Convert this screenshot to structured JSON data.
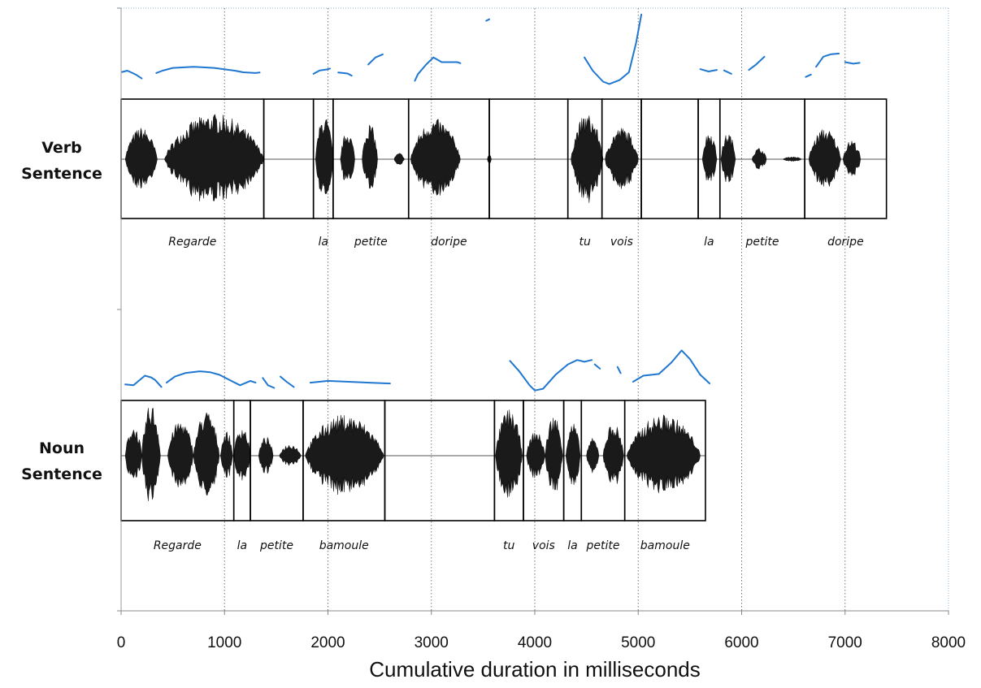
{
  "chart_data": {
    "type": "area",
    "xlabel": "Cumulative duration in milliseconds",
    "xlim": [
      0,
      8000
    ],
    "xticks": [
      0,
      1000,
      2000,
      3000,
      4000,
      5000,
      6000,
      7000,
      8000
    ],
    "grid": "vertical dotted",
    "pitch_color": "#1f77d0",
    "waveform_color": "#1a1a1a",
    "rows": [
      {
        "label_line1": "Verb",
        "label_line2": "Sentence",
        "segments": [
          {
            "word": "Regarde",
            "start": 0,
            "end": 1380
          },
          {
            "word": "",
            "start": 1380,
            "end": 1860
          },
          {
            "word": "la",
            "start": 1860,
            "end": 2050
          },
          {
            "word": "petite",
            "start": 2050,
            "end": 2780
          },
          {
            "word": "doripe",
            "start": 2780,
            "end": 3560
          },
          {
            "word": "",
            "start": 3560,
            "end": 4320
          },
          {
            "word": "tu",
            "start": 4320,
            "end": 4650
          },
          {
            "word": "vois",
            "start": 4650,
            "end": 5030
          },
          {
            "word": "",
            "start": 5030,
            "end": 5580
          },
          {
            "word": "la",
            "start": 5580,
            "end": 5790
          },
          {
            "word": "petite",
            "start": 5790,
            "end": 6610
          },
          {
            "word": "doripe",
            "start": 6610,
            "end": 7400
          }
        ],
        "bursts": [
          {
            "start": 40,
            "end": 350,
            "amp": 0.62
          },
          {
            "start": 420,
            "end": 1380,
            "amp": 0.88
          },
          {
            "start": 1880,
            "end": 2050,
            "amp": 0.85
          },
          {
            "start": 2120,
            "end": 2260,
            "amp": 0.55
          },
          {
            "start": 2330,
            "end": 2480,
            "amp": 0.7
          },
          {
            "start": 2640,
            "end": 2740,
            "amp": 0.12
          },
          {
            "start": 2800,
            "end": 3280,
            "amp": 0.78
          },
          {
            "start": 3540,
            "end": 3580,
            "amp": 0.1
          },
          {
            "start": 4350,
            "end": 4660,
            "amp": 0.88
          },
          {
            "start": 4680,
            "end": 5000,
            "amp": 0.62
          },
          {
            "start": 5620,
            "end": 5760,
            "amp": 0.55
          },
          {
            "start": 5800,
            "end": 5940,
            "amp": 0.52
          },
          {
            "start": 6100,
            "end": 6240,
            "amp": 0.22
          },
          {
            "start": 6400,
            "end": 6580,
            "amp": 0.05
          },
          {
            "start": 6650,
            "end": 6960,
            "amp": 0.6
          },
          {
            "start": 6980,
            "end": 7150,
            "amp": 0.38
          }
        ],
        "pitch": [
          [
            [
              10,
              0.62
            ],
            [
              60,
              0.7
            ],
            [
              110,
              0.55
            ],
            [
              150,
              0.42
            ],
            [
              200,
              0.2
            ]
          ],
          [
            [
              340,
              0.55
            ],
            [
              400,
              0.7
            ],
            [
              500,
              0.88
            ],
            [
              700,
              0.95
            ],
            [
              900,
              0.88
            ],
            [
              1100,
              0.7
            ],
            [
              1180,
              0.6
            ],
            [
              1300,
              0.55
            ],
            [
              1340,
              0.58
            ]
          ],
          [
            [
              1860,
              0.5
            ],
            [
              1920,
              0.72
            ],
            [
              1990,
              0.78
            ],
            [
              2020,
              0.84
            ]
          ],
          [
            [
              2100,
              0.58
            ],
            [
              2190,
              0.52
            ],
            [
              2230,
              0.38
            ]
          ],
          [
            [
              2390,
              1.1
            ],
            [
              2460,
              1.55
            ],
            [
              2530,
              1.75
            ]
          ],
          [
            [
              2840,
              0.05
            ],
            [
              2870,
              0.48
            ],
            [
              2950,
              1.1
            ],
            [
              3020,
              1.55
            ],
            [
              3100,
              1.25
            ],
            [
              3250,
              1.25
            ],
            [
              3280,
              1.18
            ]
          ],
          [
            [
              3530,
              3.9
            ],
            [
              3560,
              4.0
            ]
          ],
          [
            [
              4480,
              1.55
            ],
            [
              4560,
              0.7
            ],
            [
              4660,
              0.0
            ],
            [
              4720,
              -0.15
            ],
            [
              4820,
              0.1
            ],
            [
              4910,
              0.6
            ],
            [
              4980,
              2.5
            ],
            [
              5030,
              4.3
            ]
          ],
          [
            [
              5600,
              0.8
            ],
            [
              5680,
              0.65
            ],
            [
              5760,
              0.75
            ]
          ],
          [
            [
              5830,
              0.72
            ],
            [
              5900,
              0.5
            ]
          ],
          [
            [
              6070,
              0.75
            ],
            [
              6140,
              1.1
            ],
            [
              6220,
              1.6
            ]
          ],
          [
            [
              6620,
              0.3
            ],
            [
              6670,
              0.45
            ]
          ],
          [
            [
              6720,
              0.95
            ],
            [
              6790,
              1.6
            ],
            [
              6860,
              1.75
            ],
            [
              6940,
              1.8
            ]
          ],
          [
            [
              7000,
              1.25
            ],
            [
              7080,
              1.15
            ],
            [
              7140,
              1.2
            ]
          ]
        ],
        "pitch_axis": [
          -0.6,
          4.4
        ]
      },
      {
        "label_line1": "Noun",
        "label_line2": "Sentence",
        "segments": [
          {
            "word": "Regarde",
            "start": 0,
            "end": 1090
          },
          {
            "word": "la",
            "start": 1090,
            "end": 1250
          },
          {
            "word": "petite",
            "start": 1250,
            "end": 1760
          },
          {
            "word": "bamoule",
            "start": 1760,
            "end": 2550
          },
          {
            "word": "",
            "start": 2550,
            "end": 3610
          },
          {
            "word": "tu",
            "start": 3610,
            "end": 3890
          },
          {
            "word": "vois",
            "start": 3890,
            "end": 4280
          },
          {
            "word": "la",
            "start": 4280,
            "end": 4450
          },
          {
            "word": "petite",
            "start": 4450,
            "end": 4870
          },
          {
            "word": "bamoule",
            "start": 4870,
            "end": 5650
          }
        ],
        "bursts": [
          {
            "start": 40,
            "end": 200,
            "amp": 0.55
          },
          {
            "start": 200,
            "end": 380,
            "amp": 0.95
          },
          {
            "start": 450,
            "end": 700,
            "amp": 0.65
          },
          {
            "start": 700,
            "end": 950,
            "amp": 0.82
          },
          {
            "start": 960,
            "end": 1080,
            "amp": 0.45
          },
          {
            "start": 1090,
            "end": 1250,
            "amp": 0.55
          },
          {
            "start": 1330,
            "end": 1470,
            "amp": 0.35
          },
          {
            "start": 1530,
            "end": 1740,
            "amp": 0.22
          },
          {
            "start": 1780,
            "end": 2540,
            "amp": 0.75
          },
          {
            "start": 3620,
            "end": 3880,
            "amp": 0.85
          },
          {
            "start": 3920,
            "end": 4100,
            "amp": 0.45
          },
          {
            "start": 4100,
            "end": 4270,
            "amp": 0.75
          },
          {
            "start": 4300,
            "end": 4440,
            "amp": 0.6
          },
          {
            "start": 4500,
            "end": 4620,
            "amp": 0.32
          },
          {
            "start": 4660,
            "end": 4860,
            "amp": 0.6
          },
          {
            "start": 4890,
            "end": 5600,
            "amp": 0.75
          }
        ],
        "pitch": [
          [
            [
              40,
              0.35
            ],
            [
              120,
              0.3
            ],
            [
              170,
              0.55
            ],
            [
              230,
              0.85
            ],
            [
              290,
              0.75
            ],
            [
              330,
              0.6
            ],
            [
              390,
              0.2
            ]
          ],
          [
            [
              440,
              0.45
            ],
            [
              520,
              0.8
            ],
            [
              620,
              1.0
            ],
            [
              760,
              1.1
            ],
            [
              860,
              1.05
            ],
            [
              950,
              0.9
            ],
            [
              1050,
              0.6
            ],
            [
              1150,
              0.3
            ],
            [
              1250,
              0.55
            ],
            [
              1300,
              0.45
            ]
          ],
          [
            [
              1370,
              0.72
            ],
            [
              1420,
              0.3
            ],
            [
              1480,
              0.15
            ]
          ],
          [
            [
              1540,
              0.8
            ],
            [
              1600,
              0.5
            ],
            [
              1670,
              0.2
            ]
          ],
          [
            [
              1830,
              0.45
            ],
            [
              2000,
              0.55
            ],
            [
              2200,
              0.5
            ],
            [
              2400,
              0.45
            ],
            [
              2600,
              0.4
            ]
          ],
          [
            [
              3760,
              1.7
            ],
            [
              3850,
              1.1
            ],
            [
              3950,
              0.3
            ],
            [
              4000,
              0.0
            ],
            [
              4080,
              0.1
            ],
            [
              4200,
              0.9
            ],
            [
              4320,
              1.5
            ],
            [
              4410,
              1.75
            ],
            [
              4480,
              1.65
            ],
            [
              4550,
              1.75
            ]
          ],
          [
            [
              4580,
              1.5
            ],
            [
              4630,
              1.25
            ]
          ],
          [
            [
              4800,
              1.35
            ],
            [
              4830,
              1.0
            ]
          ],
          [
            [
              4950,
              0.5
            ],
            [
              5050,
              0.85
            ],
            [
              5200,
              0.95
            ],
            [
              5320,
              1.6
            ],
            [
              5420,
              2.3
            ],
            [
              5500,
              1.8
            ],
            [
              5600,
              0.9
            ],
            [
              5690,
              0.4
            ]
          ]
        ],
        "pitch_axis": [
          -0.2,
          2.6
        ]
      }
    ]
  }
}
